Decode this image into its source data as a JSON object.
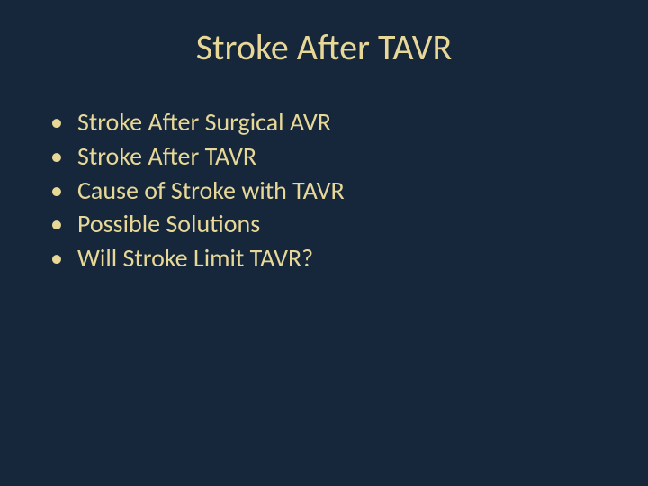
{
  "slide": {
    "background_color": "#16273b",
    "text_color": "#e8d898",
    "title": "Stroke After TAVR",
    "title_fontsize": 40,
    "body_fontsize": 28,
    "font_family": "Calibri",
    "bullets": [
      {
        "text": "Stroke After Surgical AVR"
      },
      {
        "text": "Stroke After TAVR"
      },
      {
        "text": "Cause of Stroke with TAVR"
      },
      {
        "text": "Possible Solutions"
      },
      {
        "text": "Will Stroke Limit TAVR?"
      }
    ]
  }
}
